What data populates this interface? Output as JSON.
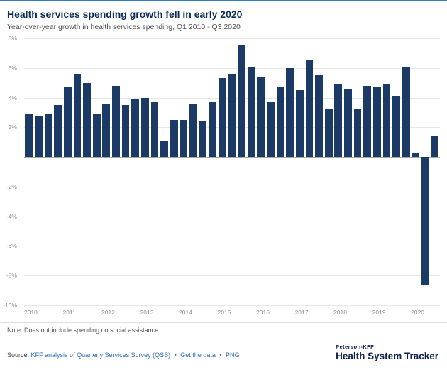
{
  "accent_color": "#2e7ebf",
  "chart_data": {
    "type": "bar",
    "title": "Health services spending growth fell in early 2020",
    "subtitle": "Year-over-year growth in health services spending, Q1 2010 - Q3 2020",
    "bar_color": "#1b3b66",
    "ylim": [
      -10,
      8
    ],
    "grid": true,
    "yticks": [
      {
        "value": 8,
        "label": "8%"
      },
      {
        "value": 6,
        "label": "6%"
      },
      {
        "value": 4,
        "label": "4%"
      },
      {
        "value": 2,
        "label": "2%"
      },
      {
        "value": 0,
        "label": ""
      },
      {
        "value": -2,
        "label": "-2%"
      },
      {
        "value": -4,
        "label": "-4%"
      },
      {
        "value": -6,
        "label": "-6%"
      },
      {
        "value": -8,
        "label": "-8%"
      },
      {
        "value": -10,
        "label": "-10%"
      }
    ],
    "x": [
      "Q1 2010",
      "Q2 2010",
      "Q3 2010",
      "Q4 2010",
      "Q1 2011",
      "Q2 2011",
      "Q3 2011",
      "Q4 2011",
      "Q1 2012",
      "Q2 2012",
      "Q3 2012",
      "Q4 2012",
      "Q1 2013",
      "Q2 2013",
      "Q3 2013",
      "Q4 2013",
      "Q1 2014",
      "Q2 2014",
      "Q3 2014",
      "Q4 2014",
      "Q1 2015",
      "Q2 2015",
      "Q3 2015",
      "Q4 2015",
      "Q1 2016",
      "Q2 2016",
      "Q3 2016",
      "Q4 2016",
      "Q1 2017",
      "Q2 2017",
      "Q3 2017",
      "Q4 2017",
      "Q1 2018",
      "Q2 2018",
      "Q3 2018",
      "Q4 2018",
      "Q1 2019",
      "Q2 2019",
      "Q3 2019",
      "Q4 2019",
      "Q1 2020",
      "Q2 2020",
      "Q3 2020"
    ],
    "values": [
      2.9,
      2.8,
      2.9,
      3.5,
      4.7,
      5.6,
      5.0,
      2.9,
      3.6,
      4.8,
      3.5,
      3.9,
      4.0,
      3.7,
      1.1,
      2.5,
      2.5,
      3.6,
      2.4,
      3.7,
      5.3,
      5.6,
      7.5,
      6.1,
      5.4,
      3.7,
      4.7,
      6.0,
      4.5,
      6.5,
      5.5,
      3.2,
      4.9,
      4.6,
      3.2,
      4.8,
      4.7,
      4.9,
      4.1,
      6.1,
      0.3,
      -8.6,
      1.4
    ],
    "year_ticks": [
      {
        "index": 0,
        "label": "2010"
      },
      {
        "index": 4,
        "label": "2011"
      },
      {
        "index": 8,
        "label": "2012"
      },
      {
        "index": 12,
        "label": "2013"
      },
      {
        "index": 16,
        "label": "2014"
      },
      {
        "index": 20,
        "label": "2015"
      },
      {
        "index": 24,
        "label": "2016"
      },
      {
        "index": 28,
        "label": "2017"
      },
      {
        "index": 32,
        "label": "2018"
      },
      {
        "index": 36,
        "label": "2019"
      },
      {
        "index": 40,
        "label": "2020"
      }
    ]
  },
  "note": {
    "text": "Note: Does not include spending on social assistance"
  },
  "source": {
    "prefix": "Source:",
    "links": [
      "KFF analysis of Quarterly Services Survey (QSS)",
      "Get the data",
      "PNG"
    ],
    "separator": "•"
  },
  "branding": {
    "line1": "Peterson-KFF",
    "line2": "Health System Tracker"
  }
}
